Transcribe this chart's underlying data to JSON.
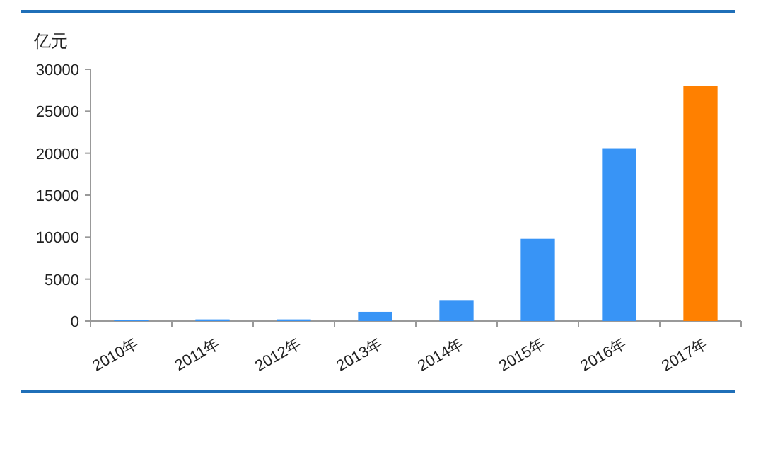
{
  "chart_data": {
    "type": "bar",
    "ylabel": "亿元",
    "categories": [
      "2010年",
      "2011年",
      "2012年",
      "2013年",
      "2014年",
      "2015年",
      "2016年",
      "2017年"
    ],
    "values": [
      100,
      200,
      200,
      1100,
      2500,
      9800,
      20600,
      28000
    ],
    "colors": [
      "#3894f6",
      "#3894f6",
      "#3894f6",
      "#3894f6",
      "#3894f6",
      "#3894f6",
      "#3894f6",
      "#ff8000"
    ],
    "ylim": [
      0,
      30000
    ],
    "yticks": [
      0,
      5000,
      10000,
      15000,
      20000,
      25000,
      30000
    ],
    "grid": false
  }
}
